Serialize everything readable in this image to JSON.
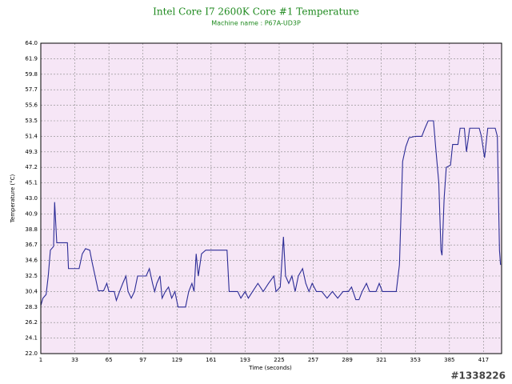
{
  "chart_data": {
    "type": "line",
    "title": "Intel Core I7 2600K Core #1 Temperature",
    "subtitle": "Machine name : P67A-UD3P",
    "x_label": "Time (seconds)",
    "y_label": "Temperature (°C)",
    "grid": true,
    "background": "#f6e6f6",
    "xlim": [
      1,
      434
    ],
    "xticks": [
      1,
      33,
      65,
      97,
      129,
      161,
      193,
      225,
      257,
      289,
      321,
      353,
      385,
      417
    ],
    "ylim": [
      22,
      64
    ],
    "yticks": [
      {
        "value": 22,
        "label": "22.0"
      },
      24.1,
      26.2,
      28.3,
      30.4,
      32.5,
      34.6,
      36.7,
      38.8,
      40.9,
      {
        "value": 43,
        "label": "43.0"
      },
      45.1,
      47.2,
      49.3,
      51.4,
      53.5,
      55.6,
      57.7,
      59.8,
      61.9,
      {
        "value": 64,
        "label": "64.0"
      }
    ],
    "series": [
      {
        "name": "Core #1",
        "color": "#2c2c96",
        "x": [
          1,
          3,
          6,
          8,
          10,
          13,
          14,
          16,
          18,
          26,
          27,
          37,
          40,
          43,
          47,
          49,
          55,
          60,
          63,
          65,
          70,
          72,
          75,
          78,
          81,
          83,
          86,
          89,
          92,
          95,
          100,
          103,
          106,
          108,
          110,
          113,
          115,
          118,
          121,
          124,
          127,
          130,
          137,
          140,
          143,
          145,
          147,
          149,
          152,
          156,
          165,
          176,
          178,
          186,
          189,
          193,
          196,
          200,
          205,
          210,
          215,
          220,
          222,
          226,
          229,
          231,
          234,
          237,
          240,
          243,
          247,
          250,
          253,
          256,
          260,
          265,
          270,
          275,
          280,
          285,
          290,
          293,
          297,
          300,
          303,
          307,
          310,
          316,
          319,
          322,
          325,
          328,
          335,
          338,
          341,
          344,
          347,
          353,
          359,
          362,
          365,
          370,
          372,
          375,
          377,
          378,
          380,
          382,
          386,
          388,
          393,
          395,
          399,
          401,
          404,
          413,
          415,
          418,
          421,
          424,
          428,
          430,
          432,
          433
        ],
        "values": [
          28.5,
          29.5,
          30,
          32.5,
          36,
          36.5,
          42.5,
          37,
          37,
          37,
          33.5,
          33.5,
          35.5,
          36.2,
          36,
          34.5,
          30.5,
          30.5,
          31.5,
          30.4,
          30.4,
          29.2,
          30.4,
          31.5,
          32.5,
          30.4,
          29.5,
          30.4,
          32.5,
          32.5,
          32.5,
          33.5,
          31.5,
          30.4,
          31.5,
          32.5,
          29.5,
          30.4,
          31,
          29.5,
          30.4,
          28.3,
          28.3,
          30.4,
          31.5,
          30.4,
          35.5,
          32.5,
          35.5,
          36,
          36,
          36,
          30.4,
          30.4,
          29.5,
          30.4,
          29.5,
          30.4,
          31.5,
          30.4,
          31.5,
          32.5,
          30.4,
          31,
          37.8,
          32.5,
          31.5,
          32.5,
          30.4,
          32.5,
          33.5,
          31.5,
          30.4,
          31.5,
          30.4,
          30.4,
          29.5,
          30.4,
          29.5,
          30.4,
          30.4,
          31,
          29.3,
          29.3,
          30.4,
          31.5,
          30.4,
          30.4,
          31.5,
          30.4,
          30.4,
          30.4,
          30.4,
          34,
          48,
          50,
          51.2,
          51.4,
          51.4,
          52.5,
          53.5,
          53.5,
          50,
          45.1,
          36,
          35.3,
          43,
          47.2,
          47.5,
          50.3,
          50.3,
          52.5,
          52.5,
          49.3,
          52.5,
          52.5,
          51.4,
          48.5,
          52.5,
          52.5,
          52.5,
          51.4,
          36,
          34
        ]
      }
    ]
  },
  "watermark": "#1338226"
}
